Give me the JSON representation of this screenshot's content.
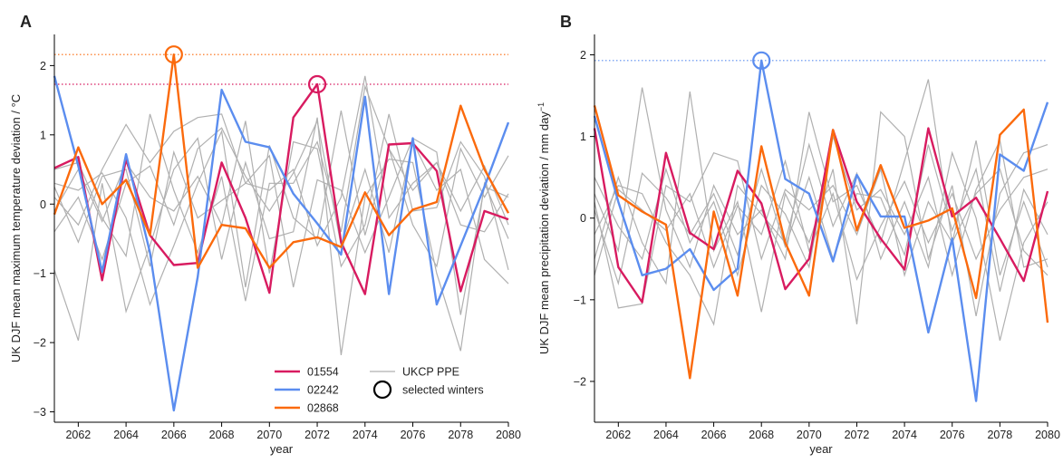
{
  "colors": {
    "s01554": "#d81b60",
    "s02242": "#5b8def",
    "s02868": "#fb6a0c",
    "ppe": "#b0b0b0"
  },
  "legend": {
    "items": [
      {
        "label": "01554",
        "color": "#d81b60",
        "kind": "line"
      },
      {
        "label": "02242",
        "color": "#5b8def",
        "kind": "line"
      },
      {
        "label": "02868",
        "color": "#fb6a0c",
        "kind": "line"
      },
      {
        "label": "UKCP PPE",
        "color": "#b0b0b0",
        "kind": "line"
      },
      {
        "label": "selected winters",
        "color": "#000000",
        "kind": "circle"
      }
    ]
  },
  "chart_data": [
    {
      "panel_label": "A",
      "type": "line",
      "ylabel": "UK DJF mean maximum temperature deviation / °C",
      "xlabel": "year",
      "xlim": [
        2061,
        2080
      ],
      "ylim": [
        -3.15,
        2.45
      ],
      "xticks": [
        "2062",
        "2064",
        "2066",
        "2068",
        "2070",
        "2072",
        "2074",
        "2076",
        "2078",
        "2080"
      ],
      "yticks": [
        "−3",
        "−2",
        "−1",
        "0",
        "1",
        "2"
      ],
      "x": [
        2061,
        2062,
        2063,
        2064,
        2065,
        2066,
        2067,
        2068,
        2069,
        2070,
        2071,
        2072,
        2073,
        2074,
        2075,
        2076,
        2077,
        2078,
        2079,
        2080
      ],
      "series": [
        {
          "name": "01554",
          "color": "#d81b60",
          "values": [
            0.52,
            0.68,
            -1.1,
            0.65,
            -0.45,
            -0.88,
            -0.85,
            0.6,
            -0.2,
            -1.28,
            1.25,
            1.73,
            -0.55,
            -1.3,
            0.86,
            0.88,
            0.48,
            -1.26,
            -0.1,
            -0.22
          ]
        },
        {
          "name": "02242",
          "color": "#5b8def",
          "values": [
            1.85,
            0.55,
            -0.98,
            0.72,
            -0.7,
            -2.98,
            -1.05,
            1.65,
            0.9,
            0.82,
            0.15,
            -0.28,
            -0.73,
            1.55,
            -1.3,
            0.95,
            -1.45,
            -0.6,
            0.25,
            1.18
          ]
        },
        {
          "name": "02868",
          "color": "#fb6a0c",
          "values": [
            -0.15,
            0.82,
            0.0,
            0.35,
            -0.45,
            2.16,
            -0.92,
            -0.3,
            -0.35,
            -0.92,
            -0.55,
            -0.48,
            -0.62,
            0.17,
            -0.45,
            -0.08,
            0.03,
            1.42,
            0.5,
            -0.13
          ]
        }
      ],
      "ppe_series": [
        [
          0.1,
          -0.3,
          0.5,
          1.15,
          0.6,
          1.05,
          1.25,
          1.3,
          0.3,
          0.2,
          0.5,
          -0.6,
          0.1,
          1.85,
          -0.2,
          0.3,
          0.6,
          -0.1,
          0.55,
          -0.3
        ],
        [
          -0.4,
          0.1,
          -0.8,
          0.3,
          0.55,
          -0.3,
          0.8,
          1.1,
          0.4,
          -0.1,
          0.45,
          1.2,
          -0.6,
          0.5,
          -0.7,
          0.9,
          0.2,
          0.5,
          -0.8,
          -1.15
        ],
        [
          0.5,
          0.6,
          -0.2,
          -0.75,
          1.3,
          0.2,
          -0.7,
          0.4,
          -1.4,
          0.3,
          0.3,
          0.9,
          -0.4,
          1.7,
          0.8,
          -0.3,
          -0.9,
          0.8,
          0.1,
          0.7
        ],
        [
          -0.95,
          -1.97,
          0.3,
          -1.55,
          -0.6,
          0.5,
          0.95,
          -0.8,
          0.6,
          -0.5,
          -0.4,
          1.25,
          -2.18,
          0.1,
          0.65,
          0.6,
          -1.0,
          -2.12,
          0.3,
          -0.5
        ],
        [
          0.3,
          0.2,
          0.45,
          -0.2,
          -1.45,
          -0.6,
          0.3,
          1.05,
          -1.2,
          0.85,
          -0.2,
          -0.5,
          1.35,
          -0.45,
          0.8,
          0.2,
          0.6,
          -0.3,
          -0.4,
          0.15
        ],
        [
          -0.1,
          0.5,
          -0.25,
          0.6,
          0.1,
          -0.1,
          0.4,
          -0.3,
          1.2,
          -1.0,
          0.9,
          0.8,
          -0.9,
          -0.3,
          1.3,
          -0.1,
          -0.05,
          0.9,
          0.4,
          -0.95
        ],
        [
          0.25,
          -0.55,
          0.4,
          0.5,
          -0.9,
          0.75,
          -0.2,
          0.05,
          0.3,
          0.7,
          -1.2,
          0.35,
          0.2,
          -0.7,
          0.1,
          0.95,
          0.75,
          -1.6,
          0.25,
          0.1
        ]
      ],
      "ref_lines": [
        {
          "y": 2.16,
          "color": "#fb6a0c"
        },
        {
          "y": 1.73,
          "color": "#d81b60"
        }
      ],
      "selected": [
        {
          "x": 2066,
          "y": 2.16,
          "color": "#fb6a0c"
        },
        {
          "x": 2072,
          "y": 1.73,
          "color": "#d81b60"
        }
      ]
    },
    {
      "panel_label": "B",
      "type": "line",
      "ylabel": "UK DJF mean precipitation deviation / mm day",
      "ylabel_sup": "−1",
      "xlabel": "year",
      "xlim": [
        2061,
        2080
      ],
      "ylim": [
        -2.5,
        2.25
      ],
      "xticks": [
        "2062",
        "2064",
        "2066",
        "2068",
        "2070",
        "2072",
        "2074",
        "2076",
        "2078",
        "2080"
      ],
      "yticks": [
        "−2",
        "−1",
        "0",
        "1",
        "2"
      ],
      "x": [
        2061,
        2062,
        2063,
        2064,
        2065,
        2066,
        2067,
        2068,
        2069,
        2070,
        2071,
        2072,
        2073,
        2074,
        2075,
        2076,
        2077,
        2078,
        2079,
        2080
      ],
      "series": [
        {
          "name": "01554",
          "color": "#d81b60",
          "values": [
            1.1,
            -0.6,
            -1.03,
            0.8,
            -0.18,
            -0.38,
            0.58,
            0.18,
            -0.87,
            -0.5,
            1.08,
            0.2,
            -0.25,
            -0.63,
            1.1,
            0.02,
            0.25,
            -0.25,
            -0.77,
            0.33
          ]
        },
        {
          "name": "02242",
          "color": "#5b8def",
          "values": [
            1.25,
            0.2,
            -0.7,
            -0.62,
            -0.38,
            -0.88,
            -0.62,
            1.93,
            0.48,
            0.3,
            -0.53,
            0.53,
            0.02,
            0.02,
            -1.4,
            -0.25,
            -2.24,
            0.78,
            0.58,
            1.42
          ]
        },
        {
          "name": "02868",
          "color": "#fb6a0c",
          "values": [
            1.38,
            0.28,
            0.08,
            -0.08,
            -1.96,
            0.08,
            -0.95,
            0.88,
            -0.3,
            -0.95,
            1.08,
            -0.15,
            0.65,
            -0.12,
            -0.03,
            0.12,
            -0.98,
            1.02,
            1.33,
            -1.28
          ]
        }
      ],
      "ppe_series": [
        [
          0.3,
          -0.4,
          1.6,
          0.1,
          -0.6,
          0.4,
          -0.2,
          0.1,
          -0.5,
          1.3,
          0.2,
          0.4,
          -0.3,
          0.7,
          1.7,
          -0.3,
          0.3,
          0.6,
          -0.4,
          -0.7
        ],
        [
          -0.5,
          0.5,
          -0.3,
          -0.8,
          1.55,
          -0.4,
          0.2,
          -1.15,
          0.3,
          -0.3,
          0.6,
          -1.3,
          1.3,
          1.0,
          -0.5,
          0.4,
          -1.2,
          0.3,
          0.8,
          0.9
        ],
        [
          0.2,
          -1.1,
          -1.05,
          0.4,
          0.2,
          0.8,
          0.7,
          -0.5,
          0.35,
          0.1,
          0.4,
          -0.2,
          0.6,
          -0.7,
          0.2,
          -0.3,
          0.95,
          -0.7,
          0.2,
          -0.6
        ],
        [
          -0.2,
          0.4,
          0.3,
          -0.3,
          -0.7,
          -1.3,
          0.4,
          0.05,
          -0.3,
          0.9,
          -0.1,
          0.55,
          -0.5,
          0.2,
          -0.6,
          0.8,
          0.0,
          -1.5,
          -0.3,
          0.2
        ],
        [
          0.5,
          -0.1,
          -0.5,
          0.6,
          -0.3,
          0.2,
          -0.7,
          0.4,
          0.05,
          -0.6,
          1.0,
          0.1,
          0.35,
          -0.2,
          0.5,
          -0.7,
          0.35,
          0.95,
          -0.6,
          -0.5
        ],
        [
          -0.7,
          0.35,
          0.1,
          -0.15,
          0.3,
          -0.6,
          0.15,
          -0.2,
          0.7,
          -0.4,
          0.3,
          -0.75,
          -0.1,
          0.45,
          -0.3,
          0.3,
          -0.5,
          0.1,
          0.5,
          0.6
        ],
        [
          0.1,
          -0.8,
          0.55,
          0.25,
          -0.2,
          0.3,
          -0.45,
          0.6,
          -0.35,
          0.5,
          -0.5,
          0.3,
          0.25,
          -0.45,
          0.9,
          -0.15,
          0.6,
          -0.9,
          0.35,
          -0.2
        ]
      ],
      "ref_lines": [
        {
          "y": 1.93,
          "color": "#5b8def"
        }
      ],
      "selected": [
        {
          "x": 2068,
          "y": 1.93,
          "color": "#5b8def"
        }
      ]
    }
  ]
}
